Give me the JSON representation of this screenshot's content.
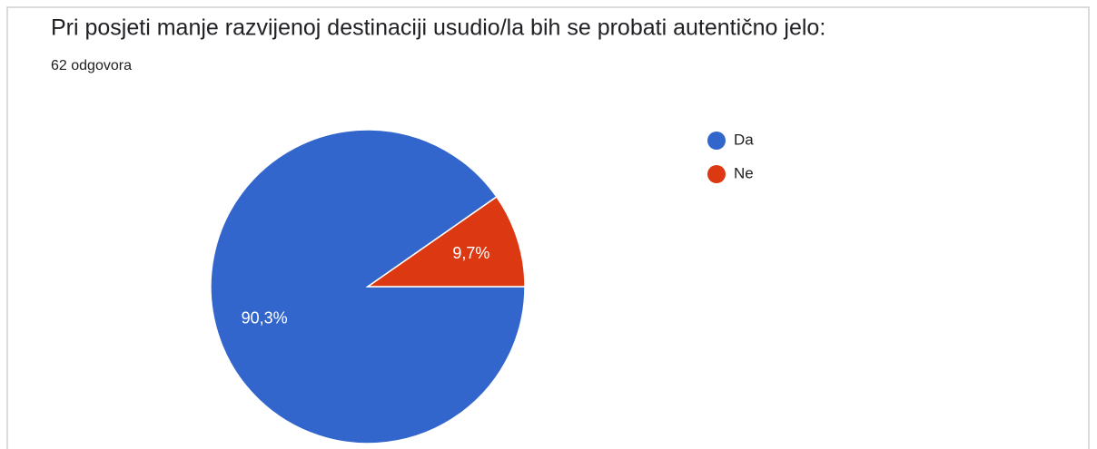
{
  "chart_data": {
    "type": "pie",
    "title": "Pri posjeti manje razvijenoj destinaciji usudio/la bih se probati autentično jelo:",
    "subtitle": "62 odgovora",
    "categories": [
      "Da",
      "Ne"
    ],
    "values": [
      90.3,
      9.7
    ],
    "value_labels": [
      "90,3%",
      "9,7%"
    ],
    "colors": [
      "#3366cc",
      "#dc3912"
    ],
    "legend": "right"
  }
}
